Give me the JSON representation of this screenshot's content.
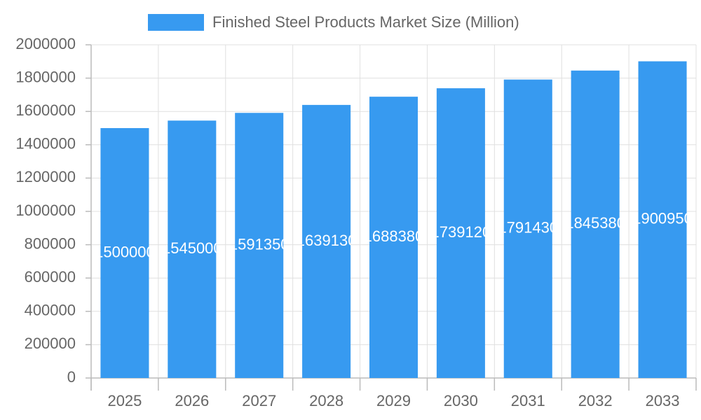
{
  "chart_data": {
    "type": "bar",
    "categories": [
      "2025",
      "2026",
      "2027",
      "2028",
      "2029",
      "2030",
      "2031",
      "2032",
      "2033"
    ],
    "series": [
      {
        "name": "Finished Steel Products Market Size (Million)",
        "color": "#379af0",
        "values": [
          1500000,
          1545000,
          1591350,
          1639130,
          1688380,
          1739120,
          1791430,
          1845380,
          1900950
        ]
      }
    ],
    "ylim": [
      0,
      2000000
    ],
    "yticks": [
      0,
      200000,
      400000,
      600000,
      800000,
      1000000,
      1200000,
      1400000,
      1600000,
      1800000,
      2000000
    ],
    "grid": true,
    "legend": "top"
  }
}
